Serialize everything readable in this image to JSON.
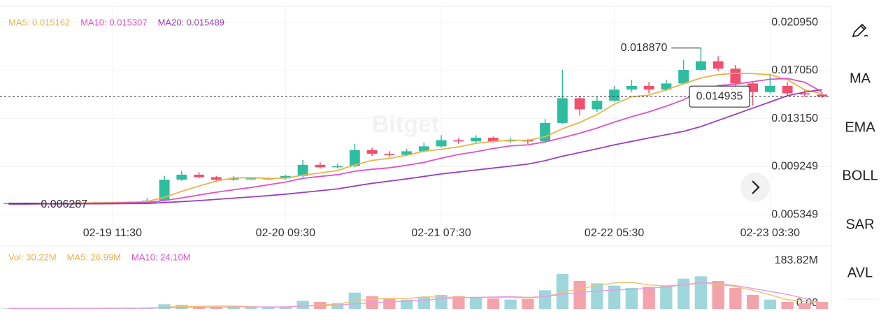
{
  "chart_data": [
    {
      "type": "candlestick",
      "categories": [
        null,
        null,
        null,
        null,
        null,
        null,
        "02-19 11:30",
        null,
        null,
        null,
        null,
        null,
        null,
        null,
        null,
        null,
        "02-20 09:30",
        null,
        null,
        null,
        null,
        null,
        null,
        null,
        null,
        "02-21 07:30",
        null,
        null,
        null,
        null,
        null,
        null,
        null,
        null,
        null,
        "02-22 05:30",
        null,
        null,
        null,
        null,
        null,
        null,
        null,
        null,
        "02-23 03:30",
        null,
        null,
        null
      ],
      "open": [
        0.00629,
        0.0063,
        0.00632,
        0.00633,
        0.00634,
        0.00635,
        0.00636,
        0.00638,
        0.0064,
        0.0065,
        0.0082,
        0.0086,
        0.0084,
        0.0082,
        0.0083,
        0.0083,
        0.0083,
        0.0085,
        0.0094,
        0.0092,
        0.0093,
        0.0106,
        0.0103,
        0.0102,
        0.0105,
        0.0109,
        0.0114,
        0.0113,
        0.0116,
        0.0113,
        0.0114,
        0.0113,
        0.0128,
        0.0148,
        0.0139,
        0.0146,
        0.0155,
        0.0158,
        0.0155,
        0.016,
        0.0171,
        0.0178,
        0.0172,
        0.016,
        0.0153,
        0.0158,
        0.0152,
        0.0151
      ],
      "high": [
        0.00633,
        0.00634,
        0.00636,
        0.00637,
        0.00638,
        0.0064,
        0.00642,
        0.00645,
        0.0067,
        0.0085,
        0.0089,
        0.0088,
        0.0085,
        0.0085,
        0.0084,
        0.0084,
        0.0086,
        0.0098,
        0.0096,
        0.0095,
        0.0111,
        0.0108,
        0.0105,
        0.0107,
        0.0112,
        0.0118,
        0.0116,
        0.0118,
        0.0117,
        0.0116,
        0.0115,
        0.0131,
        0.0171,
        0.015,
        0.0149,
        0.0158,
        0.0163,
        0.0161,
        0.0163,
        0.0179,
        0.01887,
        0.0182,
        0.0175,
        0.0162,
        0.0168,
        0.0161,
        0.0155,
        0.0153
      ],
      "low": [
        0.006287,
        0.00629,
        0.0063,
        0.00631,
        0.00632,
        0.00633,
        0.00634,
        0.00636,
        0.00638,
        0.0065,
        0.0081,
        0.0083,
        0.008,
        0.0081,
        0.0082,
        0.0082,
        0.0082,
        0.0084,
        0.0091,
        0.0091,
        0.0092,
        0.0101,
        0.01,
        0.0101,
        0.0104,
        0.0108,
        0.0111,
        0.0112,
        0.0112,
        0.0112,
        0.0111,
        0.0112,
        0.0127,
        0.0134,
        0.0137,
        0.0145,
        0.0153,
        0.0152,
        0.0154,
        0.0159,
        0.017,
        0.017,
        0.0158,
        0.0142,
        0.0152,
        0.015,
        0.0149,
        0.0148
      ],
      "close": [
        0.0063,
        0.00632,
        0.00633,
        0.00634,
        0.00635,
        0.00636,
        0.00638,
        0.0064,
        0.0065,
        0.0082,
        0.0086,
        0.0084,
        0.0082,
        0.0083,
        0.0083,
        0.0083,
        0.0085,
        0.0094,
        0.0092,
        0.0093,
        0.0106,
        0.0103,
        0.0102,
        0.0105,
        0.0109,
        0.0114,
        0.0113,
        0.0116,
        0.0113,
        0.0114,
        0.0113,
        0.0128,
        0.0148,
        0.0139,
        0.0146,
        0.0155,
        0.0158,
        0.0155,
        0.016,
        0.0171,
        0.0178,
        0.0172,
        0.016,
        0.0153,
        0.0158,
        0.0152,
        0.0151,
        0.014935
      ],
      "up_color": "#2ebd9f",
      "down_color": "#f0506e",
      "series": [
        {
          "name": "MA5",
          "color": "#e8b44a",
          "values": [
            0.00625,
            0.00626,
            0.00627,
            0.00628,
            0.0063,
            0.00632,
            0.00634,
            0.00637,
            0.00642,
            0.00677,
            0.00725,
            0.00768,
            0.00808,
            0.00834,
            0.00836,
            0.0083,
            0.00832,
            0.00856,
            0.00874,
            0.00894,
            0.0094,
            0.00976,
            0.00992,
            0.01018,
            0.0105,
            0.01066,
            0.01086,
            0.01114,
            0.0113,
            0.0114,
            0.01138,
            0.01168,
            0.01232,
            0.01284,
            0.01348,
            0.01432,
            0.01492,
            0.01506,
            0.01548,
            0.01598,
            0.01644,
            0.01672,
            0.01682,
            0.0168,
            0.0167,
            0.0163,
            0.01548,
            0.015162
          ]
        },
        {
          "name": "MA10",
          "color": "#e052c8",
          "values": [
            0.00624,
            0.00624,
            0.00625,
            0.00626,
            0.00627,
            0.00628,
            0.0063,
            0.00632,
            0.00634,
            0.0065,
            0.00672,
            0.00695,
            0.00718,
            0.00738,
            0.00756,
            0.00778,
            0.008,
            0.0083,
            0.00846,
            0.0086,
            0.00888,
            0.00904,
            0.00916,
            0.00936,
            0.0096,
            0.00994,
            0.01024,
            0.01046,
            0.01072,
            0.01094,
            0.01102,
            0.01126,
            0.0116,
            0.01196,
            0.01238,
            0.01286,
            0.0133,
            0.0137,
            0.01416,
            0.01468,
            0.01538,
            0.01582,
            0.01594,
            0.01614,
            0.01634,
            0.0164,
            0.0161,
            0.015307
          ]
        },
        {
          "name": "MA20",
          "color": "#9b3fbf",
          "values": [
            0.00622,
            0.00622,
            0.00623,
            0.00623,
            0.00624,
            0.00624,
            0.00625,
            0.00626,
            0.00627,
            0.00634,
            0.00642,
            0.0065,
            0.0066,
            0.0067,
            0.0068,
            0.0069,
            0.00702,
            0.00716,
            0.0073,
            0.00745,
            0.00768,
            0.0079,
            0.00808,
            0.00826,
            0.00846,
            0.00866,
            0.00882,
            0.00898,
            0.00914,
            0.0093,
            0.00946,
            0.00974,
            0.0101,
            0.0104,
            0.0107,
            0.01102,
            0.0113,
            0.01158,
            0.01184,
            0.01212,
            0.0125,
            0.013,
            0.0135,
            0.014,
            0.0145,
            0.015,
            0.0153,
            0.015489
          ]
        }
      ],
      "legend_labels": [
        "MA5: 0.015162",
        "MA10: 0.015307",
        "MA20: 0.015489"
      ],
      "ylim": [
        0.0048,
        0.0222
      ],
      "yticks": [
        {
          "value": 0.02095,
          "label": "0.020950"
        },
        {
          "value": 0.01705,
          "label": "0.017050"
        },
        {
          "value": 0.01315,
          "label": "0.013150"
        },
        0.009249,
        0.005349
      ],
      "high_label": "0.018870",
      "low_label": "0.006287",
      "last_price_label": "0.014935",
      "watermark": "Bitget",
      "grid": true
    },
    {
      "type": "volume",
      "values": [
        2,
        2,
        2,
        3,
        3,
        3,
        4,
        4,
        5,
        20,
        18,
        10,
        8,
        7,
        6,
        6,
        8,
        35,
        30,
        25,
        70,
        55,
        45,
        40,
        50,
        60,
        55,
        50,
        45,
        40,
        42,
        80,
        150,
        120,
        110,
        100,
        90,
        95,
        100,
        130,
        140,
        120,
        90,
        60,
        40,
        30,
        25,
        30.22
      ],
      "up_color": "#9fd6dc",
      "down_color": "#f4a3ab",
      "series": [
        {
          "name": "MA5",
          "color": "#f0c36a",
          "values": [
            2,
            2,
            2,
            2.3,
            2.4,
            2.6,
            3,
            3.4,
            3.8,
            7.2,
            10.4,
            11.4,
            12.2,
            12.6,
            9.8,
            7.4,
            7,
            12.4,
            17,
            20.8,
            33.6,
            43,
            45,
            45,
            52,
            50,
            50,
            49,
            50,
            50,
            46.4,
            51.4,
            71.4,
            86.4,
            100,
            112,
            114,
            103,
            99,
            103,
            111,
            106,
            96,
            80,
            60,
            40,
            32,
            26.99
          ]
        },
        {
          "name": "MA10",
          "color": "#e79be3",
          "values": [
            2,
            2,
            2,
            2.2,
            2.4,
            2.5,
            2.7,
            2.9,
            3.1,
            4.8,
            6.4,
            7.2,
            7.8,
            8.2,
            8.5,
            8.8,
            9.2,
            12.3,
            14.8,
            16.8,
            22,
            26.5,
            30.2,
            33.5,
            37.9,
            43.3,
            48,
            49.5,
            51,
            52.5,
            49.7,
            52.2,
            62.7,
            70.7,
            76.7,
            80.7,
            84.2,
            88.7,
            94.2,
            103.2,
            113,
            110,
            100,
            88,
            75,
            62,
            45,
            24.1
          ]
        }
      ],
      "legend_labels": [
        "Vol: 30.22M",
        "MA5: 26.99M",
        "MA10: 24.10M"
      ],
      "ylim": [
        0,
        210
      ],
      "yticks": [
        {
          "value": 183.82,
          "label": "183.82M"
        },
        {
          "value": 0,
          "label": "0.00"
        }
      ]
    }
  ],
  "sidebar": {
    "items": [
      "MA",
      "EMA",
      "BOLL",
      "SAR",
      "AVL"
    ]
  }
}
